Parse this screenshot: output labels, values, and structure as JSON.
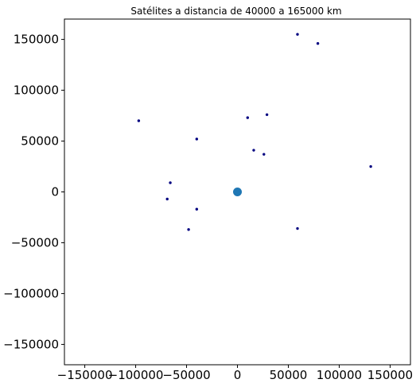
{
  "chart_data": {
    "type": "scatter",
    "title": "Satélites a distancia de 40000 a 165000 km",
    "xlabel": "",
    "ylabel": "",
    "xlim": [
      -170000,
      170000
    ],
    "ylim": [
      -170000,
      170000
    ],
    "xticks": [
      -150000,
      -100000,
      -50000,
      0,
      50000,
      100000,
      150000
    ],
    "xtick_labels": [
      "−150000",
      "−100000",
      "−50000",
      "0",
      "50000",
      "100000",
      "150000"
    ],
    "yticks": [
      -150000,
      -100000,
      -50000,
      0,
      50000,
      100000,
      150000
    ],
    "ytick_labels": [
      "−150000",
      "−100000",
      "−50000",
      "0",
      "50000",
      "100000",
      "150000"
    ],
    "grid": false,
    "series": [
      {
        "role": "earth",
        "color": "#1f77b4",
        "x": [
          0
        ],
        "y": [
          0
        ]
      },
      {
        "role": "satellites",
        "color": "#000080",
        "x": [
          59000,
          79000,
          -97000,
          10000,
          29000,
          -40000,
          16000,
          26000,
          131000,
          -66000,
          -69000,
          -40000,
          -48000,
          59000
        ],
        "y": [
          155000,
          146000,
          70000,
          73000,
          76000,
          52000,
          41000,
          37000,
          25000,
          9000,
          -7000,
          -17000,
          -37000,
          -36000
        ]
      }
    ]
  }
}
